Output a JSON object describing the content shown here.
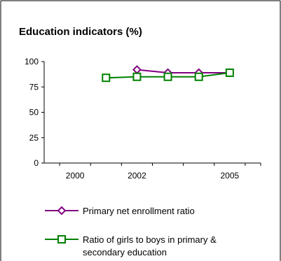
{
  "chart_data": {
    "type": "line",
    "title": "Education indicators (%)",
    "xlabel": "",
    "ylabel": "",
    "x": [
      2000,
      2001,
      2002,
      2003,
      2004,
      2005
    ],
    "x_tick_labels": [
      "2000",
      "2002",
      "2005"
    ],
    "x_tick_positions": [
      2000,
      2002,
      2005
    ],
    "ylim": [
      0,
      100
    ],
    "y_ticks": [
      0,
      25,
      50,
      75,
      100
    ],
    "grid": false,
    "legend": "bottom",
    "series": [
      {
        "name": "Primary net enrollment ratio",
        "color": "#800080",
        "marker": "diamond",
        "values": [
          null,
          null,
          92,
          89,
          89,
          89
        ]
      },
      {
        "name": "Ratio of girls to boys in primary & secondary education",
        "color": "#008000",
        "marker": "square",
        "values": [
          null,
          84,
          85,
          85,
          85,
          89
        ]
      }
    ]
  }
}
